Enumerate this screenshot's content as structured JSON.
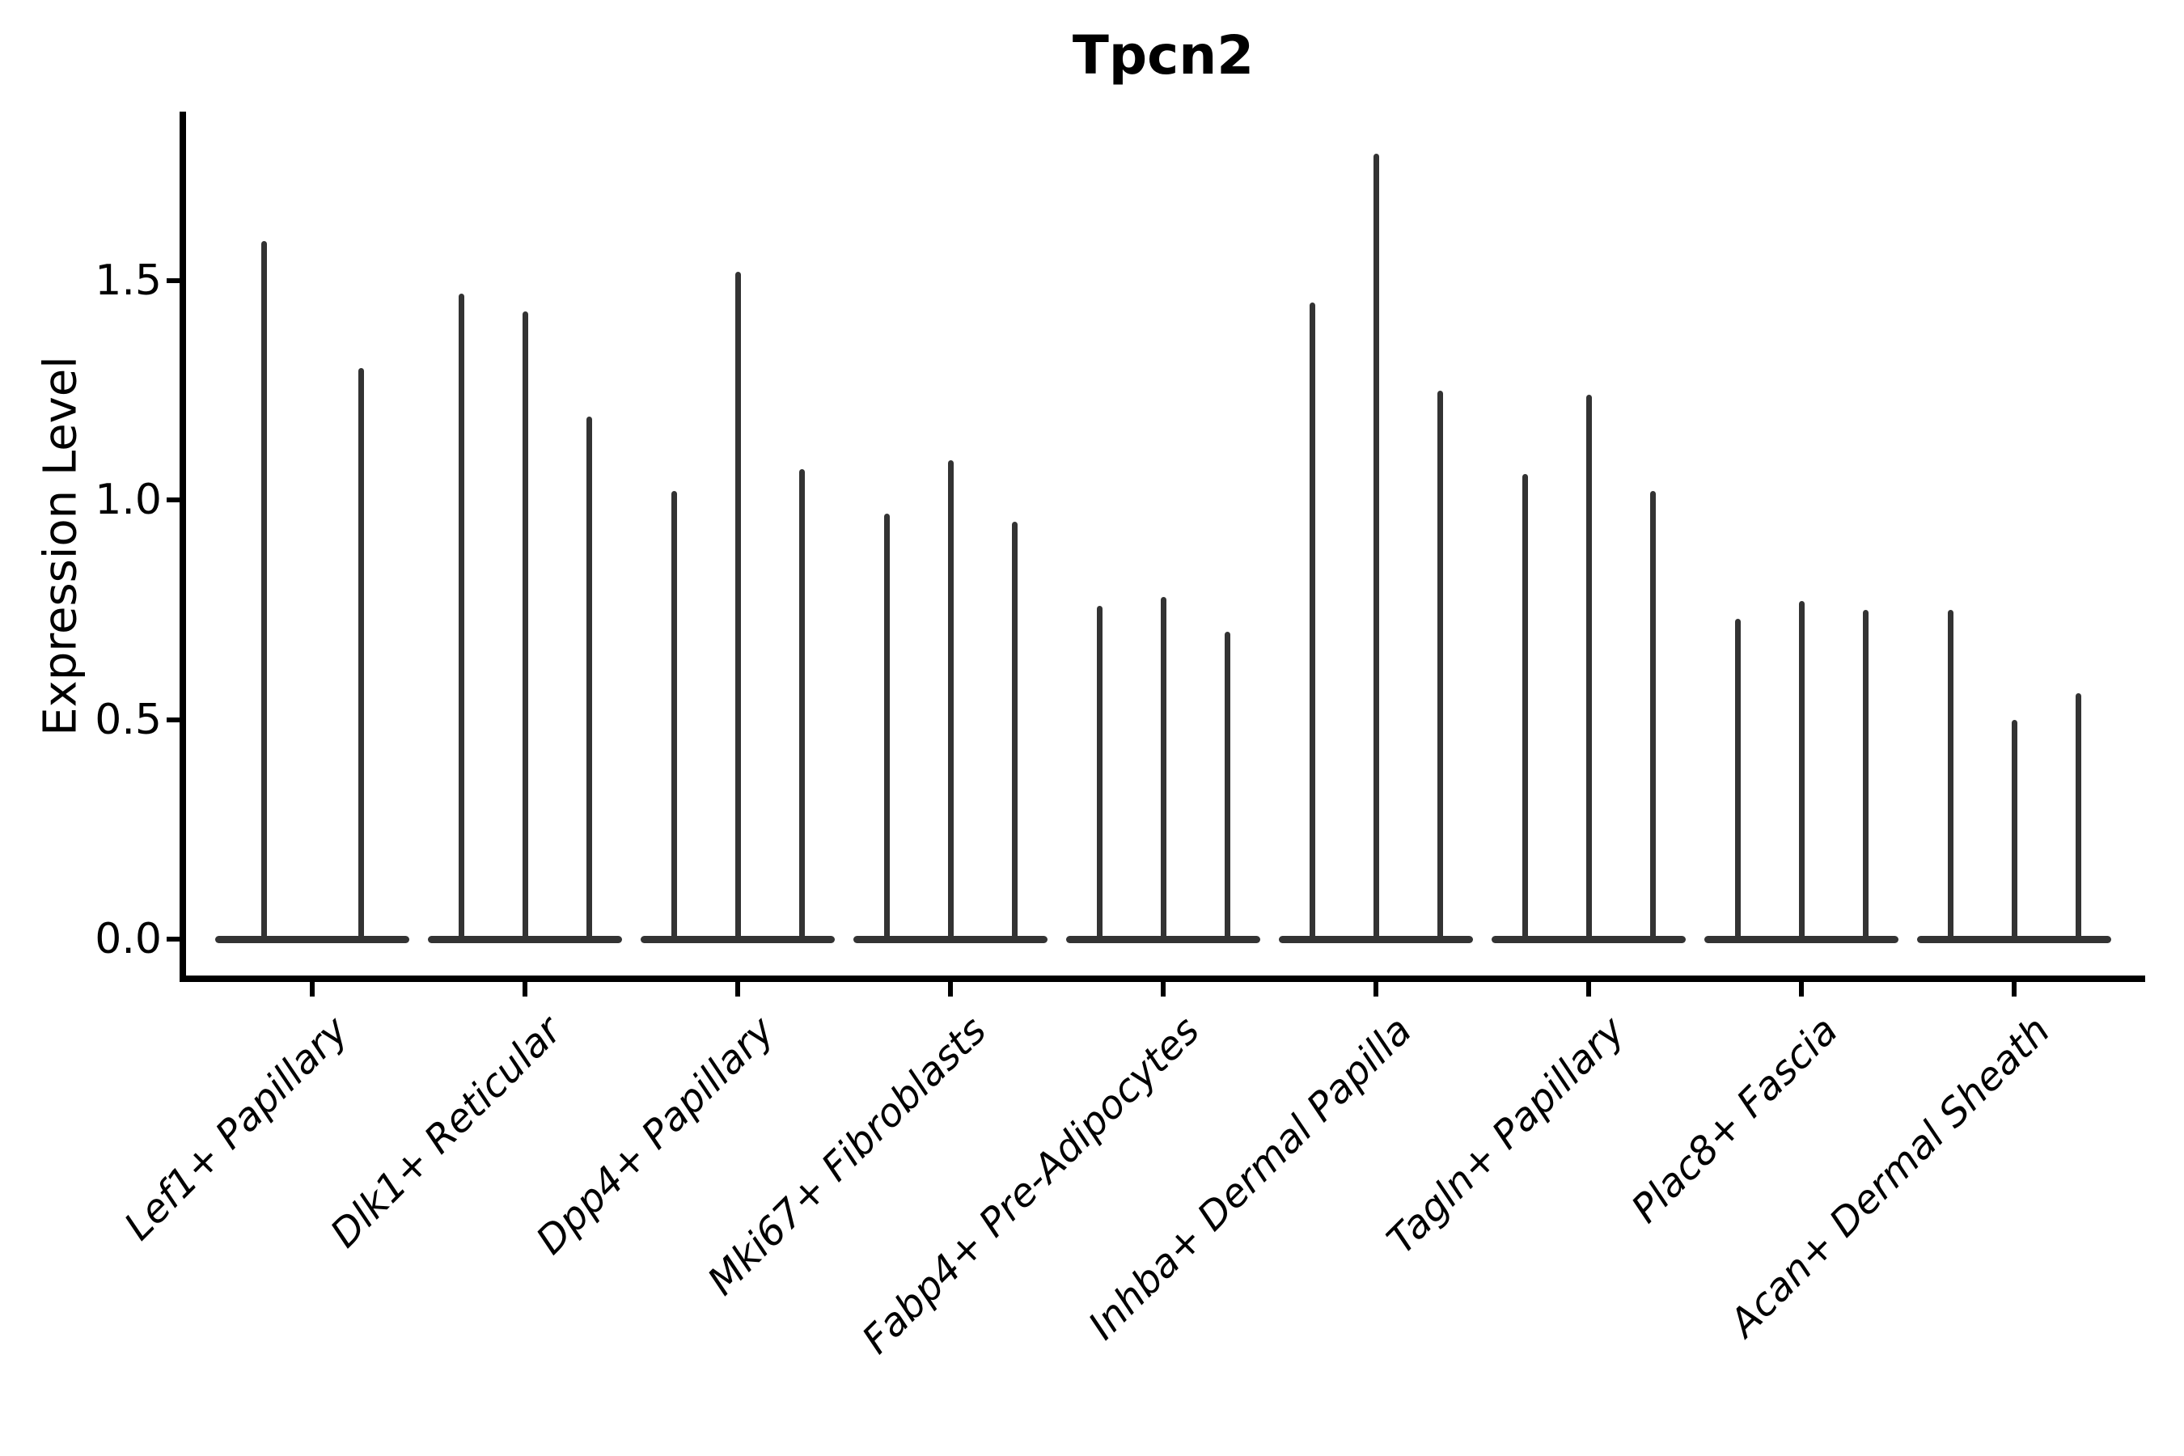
{
  "title": "Tpcn2",
  "y_axis": {
    "label": "Expression Level",
    "tick_labels": [
      "0.0",
      "0.5",
      "1.0",
      "1.5"
    ]
  },
  "colors": {
    "violin": "#333333",
    "axis": "#000000",
    "text": "#000000",
    "background": "#ffffff"
  },
  "chart_data": {
    "type": "violin",
    "title": "Tpcn2",
    "xlabel": "",
    "ylabel": "Expression Level",
    "yticks": [
      0.0,
      0.5,
      1.0,
      1.5
    ],
    "ylim": [
      -0.09,
      1.88
    ],
    "grid": false,
    "legend_position": "none",
    "description": "Collapsed violin plot of Tpcn2 expression; each cluster shows 2-3 very thin violins (baseline bulk at 0 with a narrow spike up to the maximum expression value).",
    "categories": [
      "Lef1+ Papillary",
      "Dlk1+ Reticular",
      "Dpp4+ Papillary",
      "Mki67+ Fibroblasts",
      "Fabp4+ Pre-Adipocytes",
      "Inhba+ Dermal Papilla",
      "Tagln+ Papillary",
      "Plac8+ Fascia",
      "Acan+ Dermal Sheath"
    ],
    "series": [
      {
        "category": "Lef1+ Papillary",
        "violin_maxima": [
          1.59,
          1.3
        ]
      },
      {
        "category": "Dlk1+ Reticular",
        "violin_maxima": [
          1.47,
          1.43,
          1.19
        ]
      },
      {
        "category": "Dpp4+ Papillary",
        "violin_maxima": [
          1.02,
          1.52,
          1.07
        ]
      },
      {
        "category": "Mki67+ Fibroblasts",
        "violin_maxima": [
          0.97,
          1.09,
          0.95
        ]
      },
      {
        "category": "Fabp4+ Pre-Adipocytes",
        "violin_maxima": [
          0.76,
          0.78,
          0.7
        ]
      },
      {
        "category": "Inhba+ Dermal Papilla",
        "violin_maxima": [
          1.45,
          1.79,
          1.25
        ]
      },
      {
        "category": "Tagln+ Papillary",
        "violin_maxima": [
          1.06,
          1.24,
          1.02
        ]
      },
      {
        "category": "Plac8+ Fascia",
        "violin_maxima": [
          0.73,
          0.77,
          0.75
        ]
      },
      {
        "category": "Acan+ Dermal Sheath",
        "violin_maxima": [
          0.75,
          0.5,
          0.56
        ]
      }
    ]
  }
}
